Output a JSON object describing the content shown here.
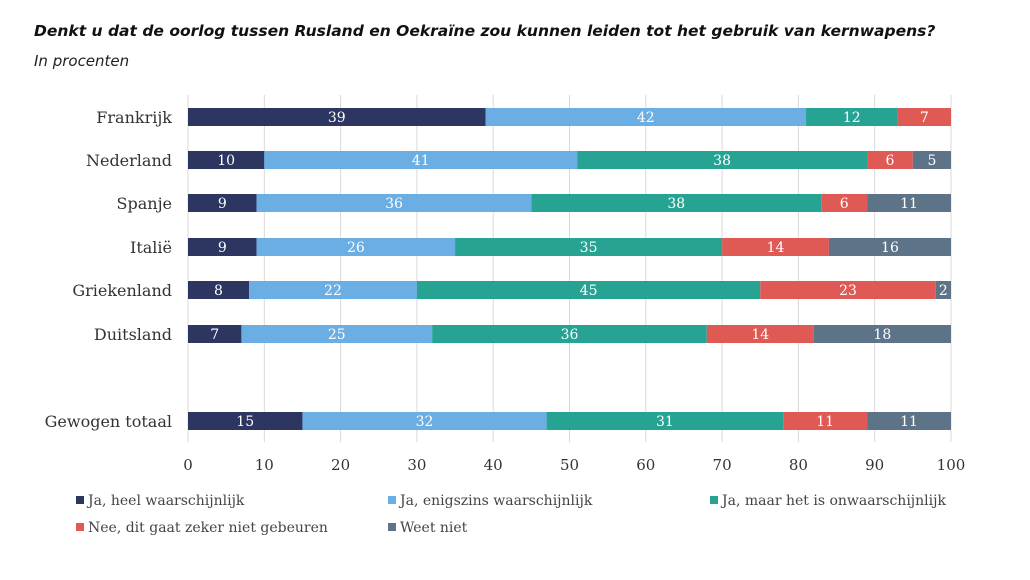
{
  "title": "Denkt u dat de oorlog tussen Rusland en Oekraïne zou kunnen leiden tot het gebruik van kernwapens?",
  "subtitle": "In procenten",
  "chart_data": {
    "type": "bar",
    "orientation": "horizontal",
    "stacked": true,
    "title": "Denkt u dat de oorlog tussen Rusland en Oekraïne zou kunnen leiden tot het gebruik van kernwapens?",
    "subtitle": "In procenten",
    "categories": [
      "Frankrijk",
      "Nederland",
      "Spanje",
      "Italië",
      "Griekenland",
      "Duitsland",
      "Gewogen totaal"
    ],
    "xlim": [
      0,
      100
    ],
    "x_ticks": [
      0,
      10,
      20,
      30,
      40,
      50,
      60,
      70,
      80,
      90,
      100
    ],
    "grid": "vertical",
    "legend_position": "bottom",
    "series": [
      {
        "name": "Ja, heel waarschijnlijk",
        "color": "#2d3561",
        "values": [
          39,
          10,
          9,
          9,
          8,
          7,
          15
        ]
      },
      {
        "name": "Ja, enigszins waarschijnlijk",
        "color": "#6aaee3",
        "values": [
          42,
          41,
          36,
          26,
          22,
          25,
          32
        ]
      },
      {
        "name": "Ja, maar het is onwaarschijnlijk",
        "color": "#27a393",
        "values": [
          12,
          38,
          38,
          35,
          45,
          36,
          31
        ]
      },
      {
        "name": "Nee, dit gaat zeker niet gebeuren",
        "color": "#e05a55",
        "values": [
          7,
          6,
          6,
          14,
          23,
          14,
          11
        ]
      },
      {
        "name": "Weet niet",
        "color": "#5d7488",
        "values": [
          0,
          5,
          11,
          16,
          2,
          18,
          11
        ]
      }
    ]
  }
}
